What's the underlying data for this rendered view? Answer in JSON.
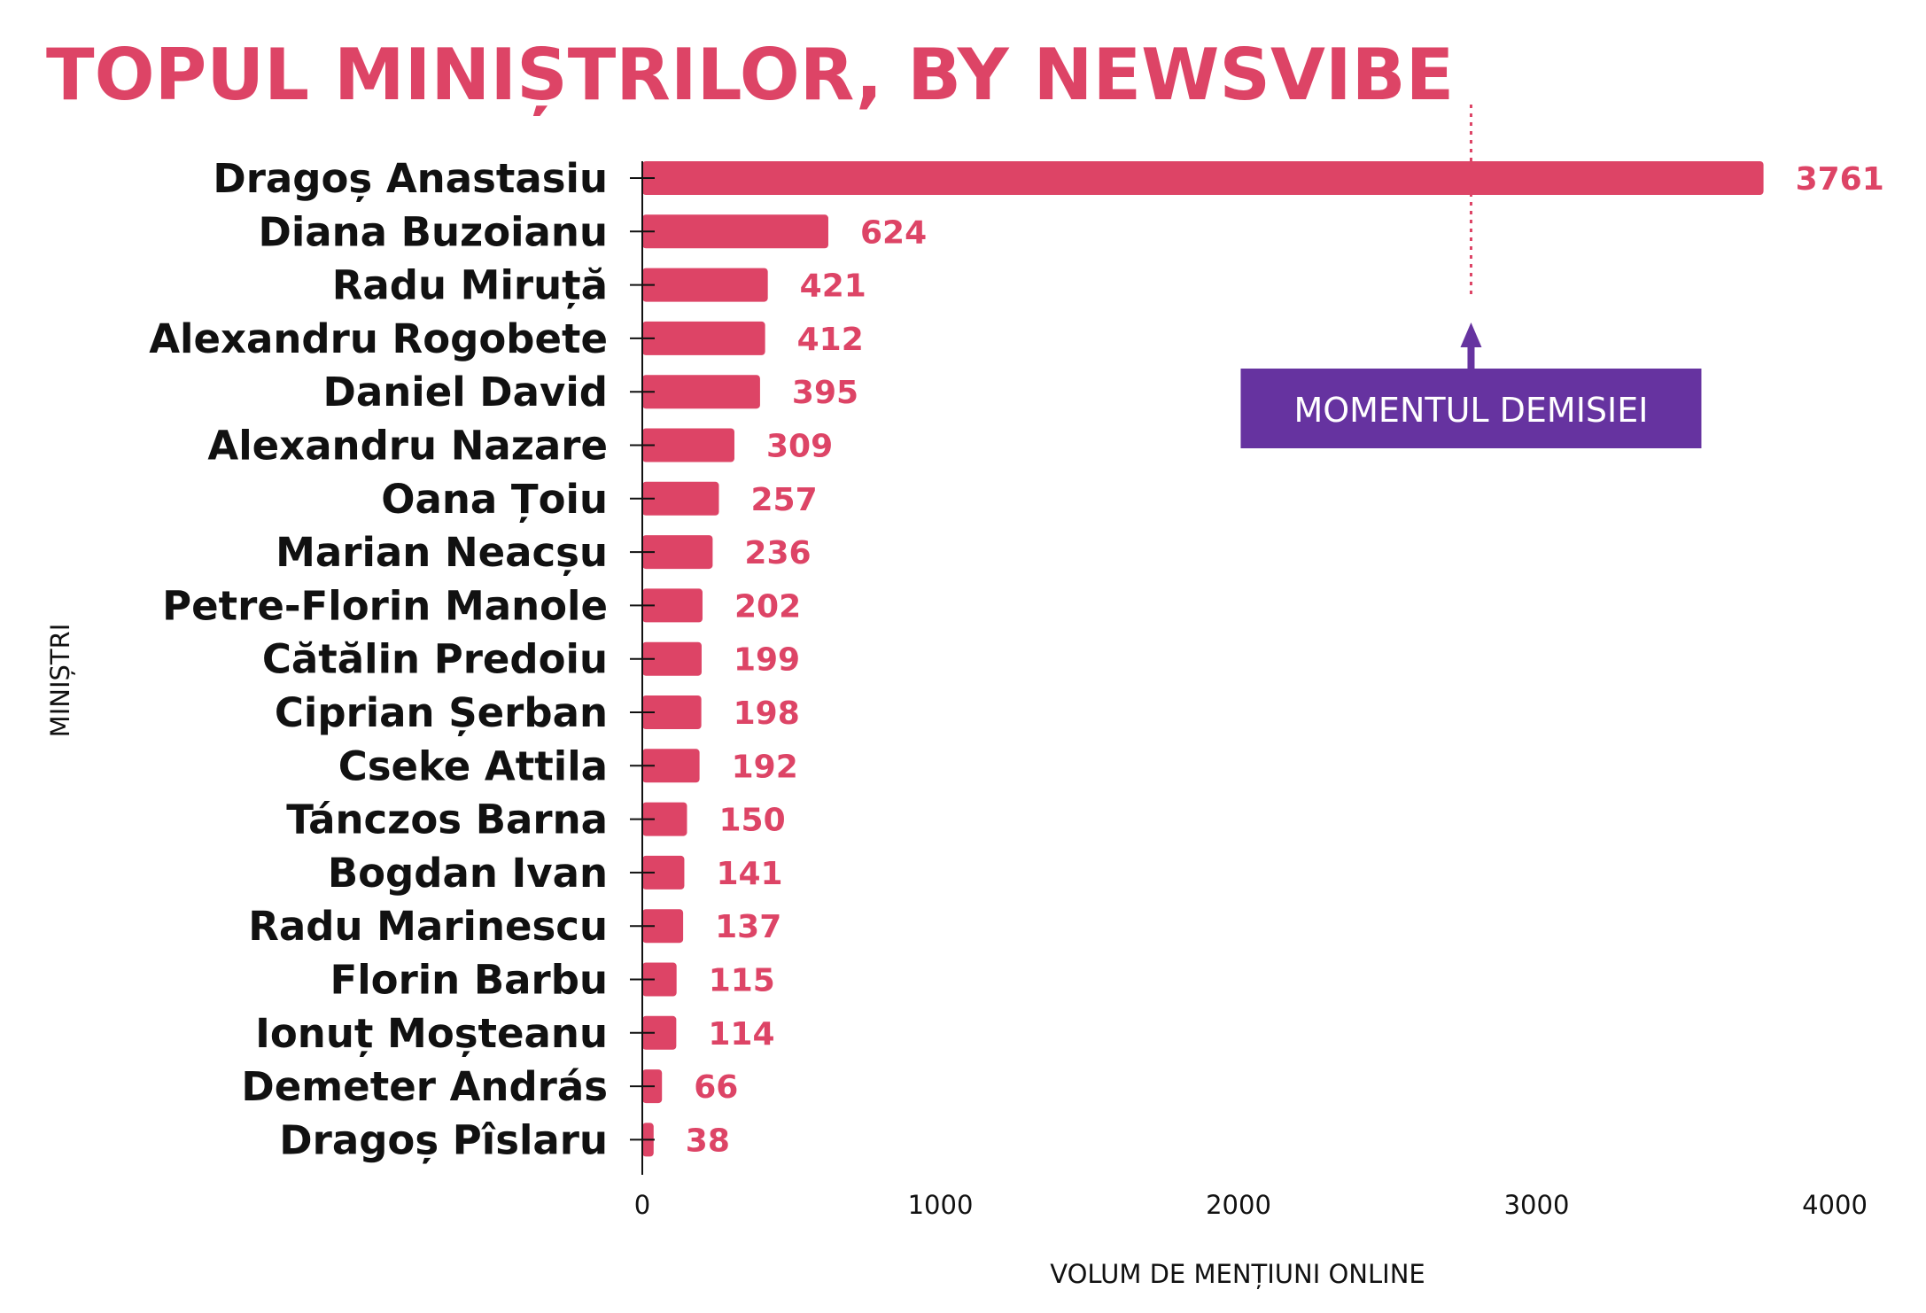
{
  "chart_data": {
    "type": "bar",
    "orientation": "horizontal",
    "title": "TOPUL MINIȘTRILOR, BY NEWSVIBE",
    "xlabel": "VOLUM DE MENȚIUNI ONLINE",
    "ylabel": "MINIȘTRI",
    "xlim": [
      0,
      4000
    ],
    "xticks": [
      "0",
      "1000",
      "2000",
      "3000",
      "4000"
    ],
    "grid": false,
    "bar_color": "#dd4466",
    "categories": [
      "Dragoș Anastasiu",
      "Diana Buzoianu",
      "Radu Miruță",
      "Alexandru Rogobete",
      "Daniel David",
      "Alexandru Nazare",
      "Oana Țoiu",
      "Marian Neacșu",
      "Petre-Florin Manole",
      "Cătălin Predoiu",
      "Ciprian Șerban",
      "Cseke Attila",
      "Tánczos Barna",
      "Bogdan Ivan",
      "Radu Marinescu",
      "Florin Barbu",
      "Ionuț Moșteanu",
      "Demeter András",
      "Dragoș Pîslaru"
    ],
    "values": [
      3761,
      624,
      421,
      412,
      395,
      309,
      257,
      236,
      202,
      199,
      198,
      192,
      150,
      141,
      137,
      115,
      114,
      66,
      38
    ],
    "annotation": {
      "text": "MOMENTUL DEMISIEI",
      "x": 2780,
      "line_color": "#dd4466",
      "box_color": "#6633a0"
    }
  }
}
